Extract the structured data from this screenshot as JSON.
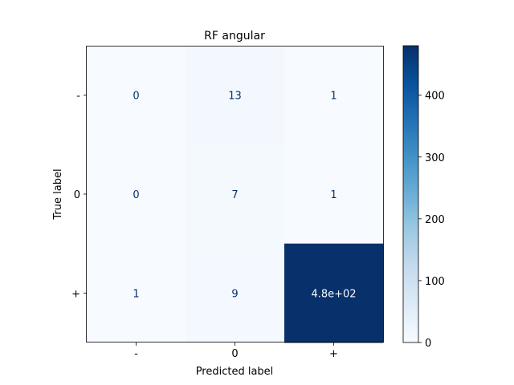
{
  "chart_data": {
    "type": "heatmap",
    "title": "RF angular",
    "xlabel": "Predicted label",
    "ylabel": "True label",
    "row_labels": [
      "-",
      "0",
      "+"
    ],
    "col_labels": [
      "-",
      "0",
      "+"
    ],
    "values": [
      [
        0,
        13,
        1
      ],
      [
        0,
        7,
        1
      ],
      [
        1,
        9,
        480
      ]
    ],
    "cell_labels": [
      [
        "0",
        "13",
        "1"
      ],
      [
        "0",
        "7",
        "1"
      ],
      [
        "1",
        "9",
        "4.8e+02"
      ]
    ],
    "colorbar": {
      "vmin": 0,
      "vmax": 480,
      "ticks": [
        0,
        100,
        200,
        300,
        400
      ],
      "tick_labels": [
        "0",
        "100",
        "200",
        "300",
        "400"
      ],
      "colormap": "Blues"
    }
  },
  "colors": {
    "low": "#f7fbff",
    "high": "#08306b",
    "text_dark": "#08306b",
    "text_light": "#f7fbff"
  }
}
